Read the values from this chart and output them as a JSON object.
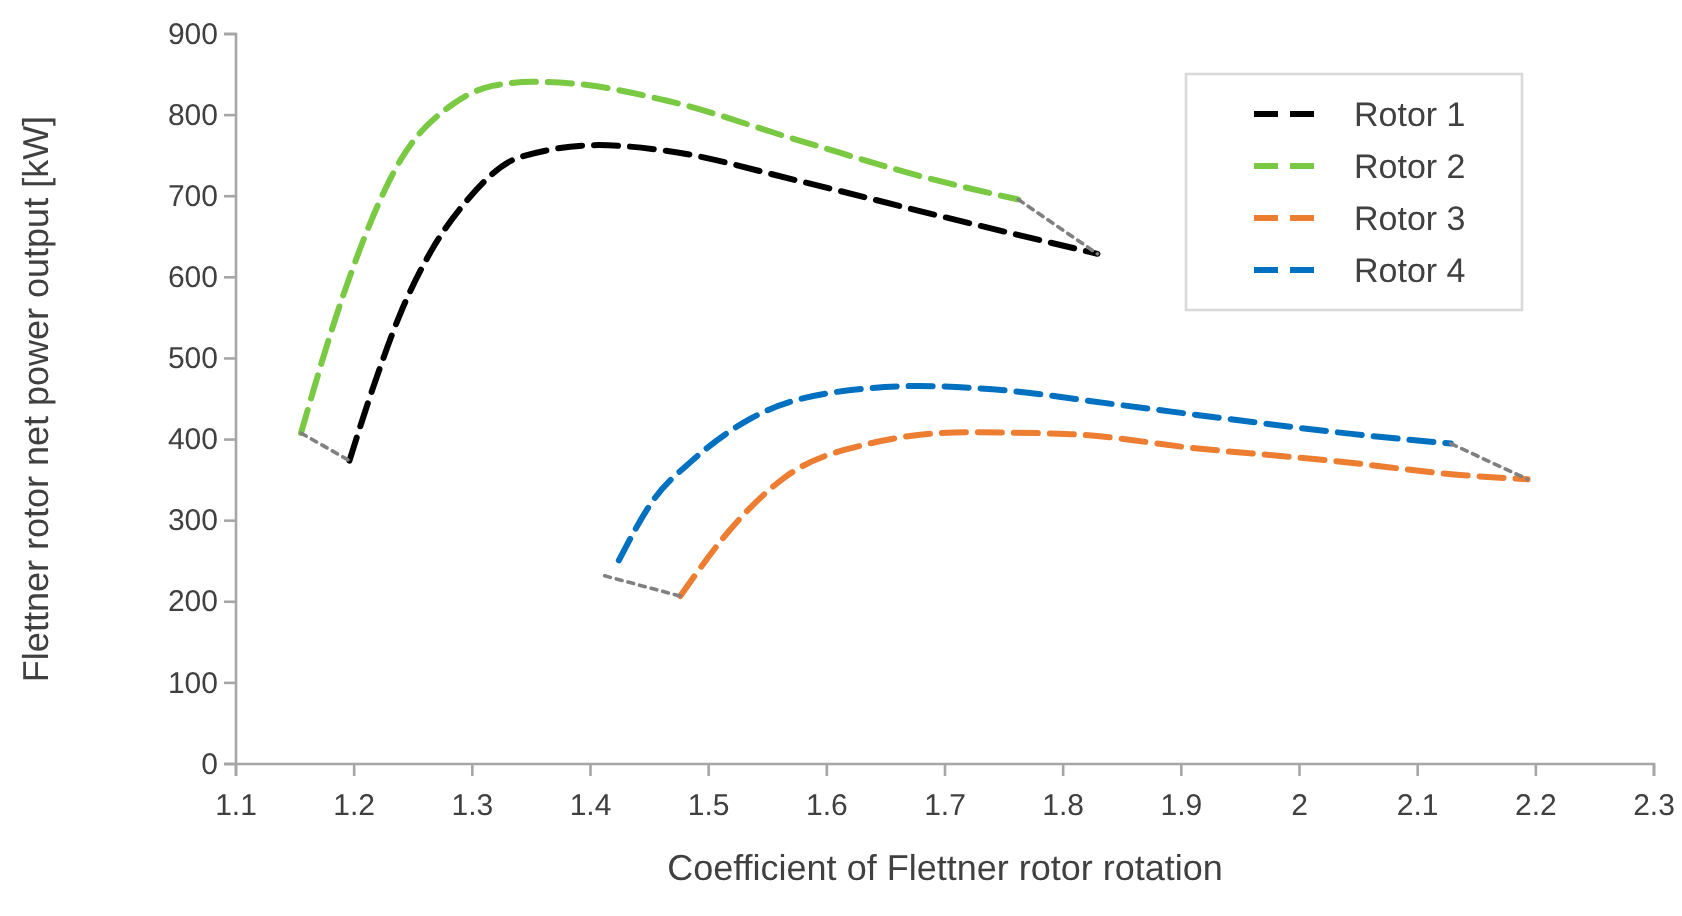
{
  "chart_data": {
    "type": "line",
    "xlabel": "Coefficient of Flettner rotor rotation",
    "ylabel": "Flettner rotor net power output [kW]",
    "xlim": [
      1.1,
      2.3
    ],
    "xticks": [
      1.1,
      1.2,
      1.3,
      1.4,
      1.5,
      1.6,
      1.7,
      1.8,
      1.9,
      {
        "value": 2,
        "label": "2"
      },
      2.1,
      2.2,
      2.3
    ],
    "ylim": [
      0,
      900
    ],
    "yticks": [
      0,
      100,
      200,
      300,
      400,
      500,
      600,
      700,
      800,
      900
    ],
    "grid": false,
    "legend": "top right",
    "line_style": "dashed",
    "marker": "none",
    "series": [
      {
        "name": "Rotor 1",
        "color": "#000000",
        "x": [
          1.196,
          1.216,
          1.239,
          1.267,
          1.295,
          1.34,
          1.407,
          1.464,
          1.576,
          1.689,
          1.829
        ],
        "values": [
          374,
          464,
          555,
          637,
          694,
          748,
          763,
          756,
          719,
          678,
          629
        ]
      },
      {
        "name": "Rotor 2",
        "color": "#7ac943",
        "x": [
          1.155,
          1.191,
          1.239,
          1.284,
          1.317,
          1.351,
          1.385,
          1.464,
          1.576,
          1.689,
          1.762
        ],
        "values": [
          408,
          579,
          744,
          814,
          836,
          841,
          839,
          818,
          769,
          721,
          696
        ]
      },
      {
        "name": "Rotor 3",
        "color": "#ed7d31",
        "x": [
          1.476,
          1.52,
          1.565,
          1.633,
          1.717,
          1.802,
          1.914,
          2.027,
          2.139,
          2.193
        ],
        "values": [
          207,
          292,
          354,
          394,
          409,
          407,
          389,
          374,
          356,
          351
        ]
      },
      {
        "name": "Rotor 4",
        "color": "#0070c0",
        "x": [
          1.424,
          1.453,
          1.486,
          1.537,
          1.605,
          1.678,
          1.74,
          1.841,
          1.942,
          2.044,
          2.128
        ],
        "values": [
          251,
          325,
          374,
          427,
          458,
          466,
          462,
          444,
          425,
          407,
          395
        ]
      },
      {
        "color": "#808080",
        "line_style": "dotted",
        "x": [
          1.155,
          1.196
        ],
        "values": [
          408,
          374
        ]
      },
      {
        "color": "#808080",
        "line_style": "dotted",
        "x": [
          1.762,
          1.829
        ],
        "values": [
          696,
          629
        ]
      },
      {
        "color": "#808080",
        "line_style": "dotted",
        "x": [
          1.412,
          1.476
        ],
        "values": [
          232,
          207
        ]
      },
      {
        "color": "#808080",
        "line_style": "dotted",
        "x": [
          2.128,
          2.193
        ],
        "values": [
          395,
          351
        ]
      }
    ]
  }
}
